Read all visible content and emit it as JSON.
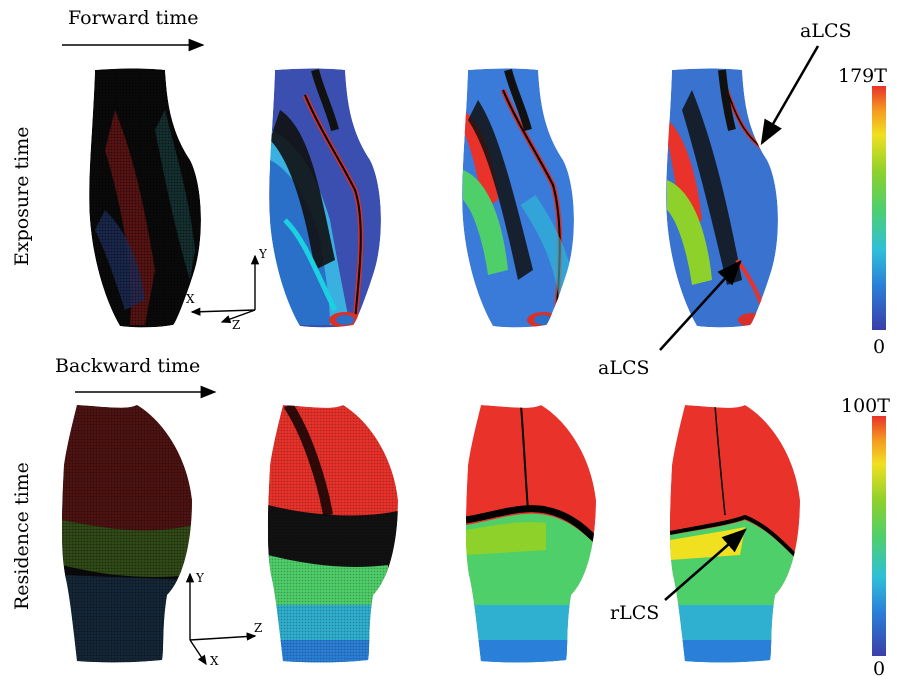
{
  "top": {
    "direction_label": "Forward time",
    "row_label": "Exposure time",
    "scale_max": "179T",
    "scale_min": "0",
    "annotation_upper": "aLCS",
    "annotation_lower": "aLCS",
    "axes": {
      "x": "X",
      "y": "Y",
      "z": "Z"
    }
  },
  "bottom": {
    "direction_label": "Backward time",
    "row_label": "Residence time",
    "scale_max": "100T",
    "scale_min": "0",
    "annotation": "rLCS",
    "axes": {
      "x": "X",
      "y": "Y",
      "z": "Z"
    }
  },
  "colormap": [
    "#3a3fa8",
    "#2a7fd8",
    "#2fc0d8",
    "#4fcf6a",
    "#8ed12a",
    "#f0e020",
    "#f59a20",
    "#e8322a"
  ]
}
